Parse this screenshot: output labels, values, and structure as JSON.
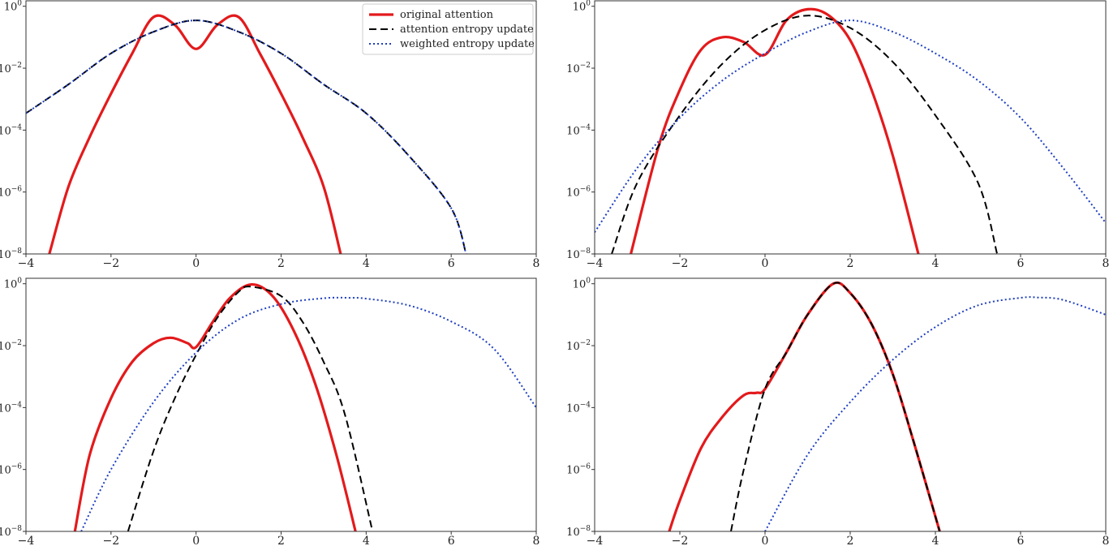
{
  "legend": {
    "placement": "top-right of first panel",
    "entries": [
      {
        "label": "original attention",
        "color": "#e31a1c",
        "style": "solid"
      },
      {
        "label": "attention entropy update",
        "color": "#000000",
        "style": "dashed"
      },
      {
        "label": "weighted entropy update",
        "color": "#1f3fbf",
        "style": "dotted"
      }
    ]
  },
  "x_ticks": [
    "−4",
    "−2",
    "0",
    "2",
    "4",
    "6",
    "8"
  ],
  "y_ticks": [
    {
      "base": "10",
      "exp": "0"
    },
    {
      "base": "10",
      "exp": "−2"
    },
    {
      "base": "10",
      "exp": "−4"
    },
    {
      "base": "10",
      "exp": "−6"
    },
    {
      "base": "10",
      "exp": "−8"
    }
  ],
  "chart_data": [
    {
      "type": "line",
      "grid": false,
      "y_scale": "log",
      "xlim": [
        -4,
        8
      ],
      "ylim": [
        1e-08,
        1.5
      ],
      "x": [
        -3.5,
        -3,
        -2.5,
        -2,
        -1.5,
        -1,
        -0.5,
        0,
        0.5,
        1,
        1.5,
        2,
        2.5,
        3,
        3.4
      ],
      "series": [
        {
          "name": "original attention",
          "color": "#e31a1c",
          "style": "solid",
          "x": [
            -3.45,
            -3,
            -2.5,
            -2,
            -1.5,
            -1,
            -0.5,
            0,
            0.5,
            1,
            1.5,
            2,
            2.5,
            3,
            3.4
          ],
          "values": [
            1e-08,
            1.5e-06,
            6e-05,
            0.0015,
            0.03,
            0.45,
            0.25,
            0.042,
            0.25,
            0.45,
            0.03,
            0.0015,
            6e-05,
            1.5e-06,
            1e-08
          ]
        },
        {
          "name": "attention entropy update",
          "color": "#000000",
          "style": "dashed",
          "x": [
            -4,
            -3,
            -2,
            -1,
            0,
            1,
            2,
            3,
            4,
            5,
            6,
            6.35
          ],
          "values": [
            0.00035,
            0.003,
            0.03,
            0.15,
            0.35,
            0.15,
            0.03,
            0.003,
            0.00035,
            1.5e-05,
            3e-07,
            1e-08
          ]
        },
        {
          "name": "weighted entropy update",
          "color": "#1f3fbf",
          "style": "dotted",
          "x": [
            -4,
            -3,
            -2,
            -1,
            0,
            1,
            2,
            3,
            4,
            5,
            6,
            6.35
          ],
          "values": [
            0.00035,
            0.003,
            0.03,
            0.15,
            0.35,
            0.15,
            0.03,
            0.003,
            0.00035,
            1.5e-05,
            3e-07,
            1e-08
          ]
        }
      ]
    },
    {
      "type": "line",
      "grid": false,
      "y_scale": "log",
      "xlim": [
        -4,
        8
      ],
      "ylim": [
        1e-08,
        1.5
      ],
      "series": [
        {
          "name": "original attention",
          "color": "#e31a1c",
          "style": "solid",
          "x": [
            -3.15,
            -2.5,
            -2,
            -1.5,
            -1,
            -0.5,
            0,
            0.5,
            1,
            1.5,
            2,
            2.5,
            3,
            3.6
          ],
          "values": [
            1e-08,
            3e-05,
            0.002,
            0.04,
            0.1,
            0.07,
            0.027,
            0.35,
            0.8,
            0.5,
            0.08,
            0.002,
            1.5e-05,
            1e-08
          ]
        },
        {
          "name": "attention entropy update",
          "color": "#000000",
          "style": "dashed",
          "x": [
            -3.6,
            -3,
            -2,
            -1,
            0,
            1,
            2,
            3,
            4,
            5,
            5.45
          ],
          "values": [
            1e-08,
            2e-06,
            0.0003,
            0.014,
            0.17,
            0.5,
            0.2,
            0.016,
            0.0003,
            2e-06,
            1e-08
          ]
        },
        {
          "name": "weighted entropy update",
          "color": "#1f3fbf",
          "style": "dotted",
          "x": [
            -4,
            -3,
            -2,
            -1,
            0,
            1,
            2,
            3,
            4,
            5,
            6,
            7,
            8
          ],
          "values": [
            5e-08,
            6e-06,
            0.00025,
            0.004,
            0.03,
            0.15,
            0.35,
            0.15,
            0.03,
            0.004,
            0.00025,
            6e-06,
            1e-07
          ]
        }
      ]
    },
    {
      "type": "line",
      "grid": false,
      "y_scale": "log",
      "xlim": [
        -4,
        8
      ],
      "ylim": [
        1e-08,
        1.5
      ],
      "series": [
        {
          "name": "original attention",
          "color": "#e31a1c",
          "style": "solid",
          "x": [
            -2.85,
            -2.5,
            -2,
            -1.5,
            -1,
            -0.6,
            -0.2,
            0,
            0.4,
            0.8,
            1.3,
            1.8,
            2.3,
            2.8,
            3.3,
            3.75
          ],
          "values": [
            1e-08,
            3e-06,
            0.0002,
            0.003,
            0.012,
            0.018,
            0.012,
            0.009,
            0.06,
            0.35,
            0.95,
            0.4,
            0.03,
            0.0006,
            3e-06,
            1e-08
          ]
        },
        {
          "name": "attention entropy update",
          "color": "#000000",
          "style": "dashed",
          "x": [
            -1.6,
            -1,
            -0.5,
            0,
            0.5,
            1,
            1.3,
            2,
            2.5,
            3,
            3.5,
            4.15
          ],
          "values": [
            1e-08,
            4e-06,
            0.0002,
            0.005,
            0.08,
            0.55,
            0.8,
            0.4,
            0.06,
            0.003,
            6e-05,
            1e-08
          ]
        },
        {
          "name": "weighted entropy update",
          "color": "#1f3fbf",
          "style": "dotted",
          "x": [
            -2.7,
            -2,
            -1,
            0,
            1,
            2,
            3,
            3.6,
            4,
            5,
            6,
            7,
            8
          ],
          "values": [
            1e-08,
            1e-06,
            0.00015,
            0.006,
            0.07,
            0.22,
            0.34,
            0.35,
            0.33,
            0.2,
            0.06,
            0.008,
            0.0001
          ]
        }
      ]
    },
    {
      "type": "line",
      "grid": false,
      "y_scale": "log",
      "xlim": [
        -4,
        8
      ],
      "ylim": [
        1e-08,
        1.5
      ],
      "series": [
        {
          "name": "original attention",
          "color": "#e31a1c",
          "style": "solid",
          "x": [
            -2.25,
            -2,
            -1.5,
            -1,
            -0.5,
            -0.2,
            0,
            0.5,
            1,
            1.6,
            2,
            2.5,
            3,
            3.5,
            4.1
          ],
          "values": [
            1e-08,
            1e-07,
            5e-06,
            5e-05,
            0.00025,
            0.0003,
            0.0004,
            0.006,
            0.1,
            1.0,
            0.5,
            0.05,
            0.0012,
            7e-06,
            1e-08
          ]
        },
        {
          "name": "attention entropy update",
          "color": "#000000",
          "style": "dashed",
          "x": [
            -0.8,
            -0.5,
            0,
            0.5,
            1,
            1.6,
            2,
            2.5,
            3,
            3.5,
            4.1
          ],
          "values": [
            1e-08,
            1e-06,
            0.0004,
            0.006,
            0.1,
            1.0,
            0.5,
            0.05,
            0.0012,
            7e-06,
            1e-08
          ]
        },
        {
          "name": "weighted entropy update",
          "color": "#1f3fbf",
          "style": "dotted",
          "x": [
            0,
            1,
            2,
            3,
            4,
            5,
            6,
            6.4,
            7,
            8
          ],
          "values": [
            1e-08,
            3e-06,
            0.00015,
            0.0035,
            0.04,
            0.2,
            0.35,
            0.36,
            0.3,
            0.1
          ]
        }
      ]
    }
  ]
}
